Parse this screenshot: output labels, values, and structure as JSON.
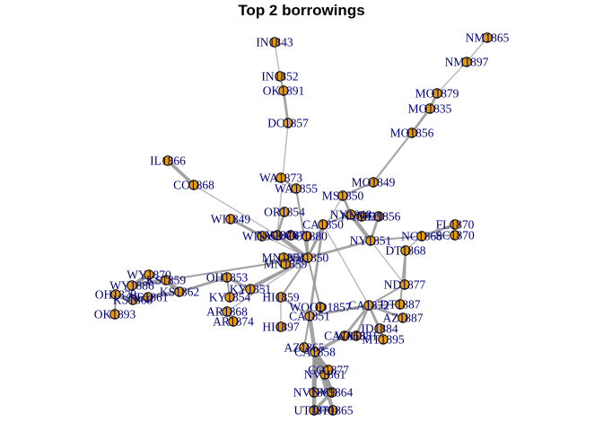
{
  "title": "Top 2 borrowings",
  "colors": {
    "node_fill": "#E69F00",
    "node_stroke": "#000000",
    "edge": "#999999",
    "label": "#000080"
  },
  "nodes": [
    {
      "id": "IN1843",
      "label": "IN1843"
    },
    {
      "id": "IN1852",
      "label": "IN1852"
    },
    {
      "id": "OK1891",
      "label": "OK1891"
    },
    {
      "id": "DC1857",
      "label": "DC1857"
    },
    {
      "id": "IL1866",
      "label": "IL1866"
    },
    {
      "id": "CO1868",
      "label": "CO1868"
    },
    {
      "id": "NM1865",
      "label": "NM1865"
    },
    {
      "id": "NM1897",
      "label": "NM1897"
    },
    {
      "id": "MO1879",
      "label": "MO1879"
    },
    {
      "id": "MO1835",
      "label": "MO1835"
    },
    {
      "id": "MO1856",
      "label": "MO1856"
    },
    {
      "id": "MO1849",
      "label": "MO1849"
    },
    {
      "id": "WA1873",
      "label": "WA1873"
    },
    {
      "id": "WA1855",
      "label": "WA1855"
    },
    {
      "id": "MS1850",
      "label": "MS1850"
    },
    {
      "id": "OR1854",
      "label": "OR1854"
    },
    {
      "id": "NY1848",
      "label": "NY1848"
    },
    {
      "id": "NY1829",
      "label": "NY1829"
    },
    {
      "id": "MD1856",
      "label": "MD1856"
    },
    {
      "id": "CA1850",
      "label": "CA1850"
    },
    {
      "id": "FL1870",
      "label": "FL1870"
    },
    {
      "id": "SC1870",
      "label": "SC1870"
    },
    {
      "id": "NC1868",
      "label": "NC1868"
    },
    {
      "id": "NY1851",
      "label": "NY1851"
    },
    {
      "id": "DT1868",
      "label": "DT1868"
    },
    {
      "id": "WI1849",
      "label": "WI1849"
    },
    {
      "id": "WI1858",
      "label": "WI1858"
    },
    {
      "id": "NY1876",
      "label": "NY1876"
    },
    {
      "id": "CO1870",
      "label": "CO1870"
    },
    {
      "id": "CO1880",
      "label": "CO1880"
    },
    {
      "id": "MN1851",
      "label": "MN1851"
    },
    {
      "id": "NY1850",
      "label": "NY1850"
    },
    {
      "id": "MN1859",
      "label": "MN1859"
    },
    {
      "id": "WY1870",
      "label": "WY1870"
    },
    {
      "id": "WY1886",
      "label": "WY1886"
    },
    {
      "id": "KS1859",
      "label": "KS1859"
    },
    {
      "id": "OH1853",
      "label": "OH1853"
    },
    {
      "id": "OH1879",
      "label": "OH1879"
    },
    {
      "id": "KS1868",
      "label": "KS1868"
    },
    {
      "id": "NE1861",
      "label": "NE1861"
    },
    {
      "id": "KS1862",
      "label": "KS1862"
    },
    {
      "id": "KY1851",
      "label": "KY1851"
    },
    {
      "id": "KY1854",
      "label": "KY1854"
    },
    {
      "id": "OK1893",
      "label": "OK1893"
    },
    {
      "id": "HI1859",
      "label": "HI1859"
    },
    {
      "id": "ND1877",
      "label": "ND1877"
    },
    {
      "id": "DT1887",
      "label": "DT1887"
    },
    {
      "id": "WOOD1857",
      "label": "WOOD1857"
    },
    {
      "id": "CA1851",
      "label": "CA1851"
    },
    {
      "id": "CA1872",
      "label": "CA1872"
    },
    {
      "id": "AZ1887",
      "label": "AZ1887"
    },
    {
      "id": "AR1868",
      "label": "AR1868"
    },
    {
      "id": "AR1874",
      "label": "AR1874"
    },
    {
      "id": "HI1897",
      "label": "HI1897"
    },
    {
      "id": "ID1884",
      "label": "ID1884"
    },
    {
      "id": "MT1895",
      "label": "MT1895"
    },
    {
      "id": "CA1868",
      "label": "CA1868"
    },
    {
      "id": "WA1881",
      "label": "WA1881"
    },
    {
      "id": "AZ1865",
      "label": "AZ1865"
    },
    {
      "id": "CA1858",
      "label": "CA1858"
    },
    {
      "id": "NV1861",
      "label": "NV1861"
    },
    {
      "id": "CO1877",
      "label": "CO1877"
    },
    {
      "id": "NV1869",
      "label": "NV1869"
    },
    {
      "id": "NV1864",
      "label": "NV1864"
    },
    {
      "id": "UT1870",
      "label": "UT1870"
    },
    {
      "id": "UT1865",
      "label": "UT1865"
    }
  ],
  "edges": [
    {
      "from": "IN1843",
      "to": "IN1852",
      "weight": 1
    },
    {
      "from": "IN1852",
      "to": "OK1891",
      "weight": 2
    },
    {
      "from": "OK1891",
      "to": "DC1857",
      "weight": 3
    },
    {
      "from": "DC1857",
      "to": "NY1876",
      "weight": 1
    },
    {
      "from": "IL1866",
      "to": "CO1868",
      "weight": 4
    },
    {
      "from": "CO1868",
      "to": "NY1876",
      "weight": 1
    },
    {
      "from": "NM1865",
      "to": "NM1897",
      "weight": 1
    },
    {
      "from": "NM1897",
      "to": "MO1879",
      "weight": 1
    },
    {
      "from": "MO1879",
      "to": "MO1835",
      "weight": 3
    },
    {
      "from": "MO1835",
      "to": "MO1856",
      "weight": 3
    },
    {
      "from": "MO1856",
      "to": "MO1849",
      "weight": 2
    },
    {
      "from": "MO1849",
      "to": "MS1850",
      "weight": 2
    },
    {
      "from": "WA1873",
      "to": "WA1855",
      "weight": 3
    },
    {
      "from": "WA1855",
      "to": "NY1850",
      "weight": 2
    },
    {
      "from": "MS1850",
      "to": "NY1848",
      "weight": 3
    },
    {
      "from": "MS1850",
      "to": "NY1850",
      "weight": 1
    },
    {
      "from": "OR1854",
      "to": "NY1876",
      "weight": 3
    },
    {
      "from": "NY1848",
      "to": "NY1829",
      "weight": 3
    },
    {
      "from": "NY1829",
      "to": "MD1856",
      "weight": 3
    },
    {
      "from": "NY1848",
      "to": "CA1850",
      "weight": 2
    },
    {
      "from": "CA1850",
      "to": "NY1850",
      "weight": 3
    },
    {
      "from": "NY1848",
      "to": "NY1851",
      "weight": 5
    },
    {
      "from": "MD1856",
      "to": "NY1851",
      "weight": 3
    },
    {
      "from": "NY1851",
      "to": "NC1868",
      "weight": 2
    },
    {
      "from": "NC1868",
      "to": "FL1870",
      "weight": 3
    },
    {
      "from": "NC1868",
      "to": "SC1870",
      "weight": 2
    },
    {
      "from": "NC1868",
      "to": "DT1868",
      "weight": 1
    },
    {
      "from": "DT1868",
      "to": "ND1877",
      "weight": 2
    },
    {
      "from": "DT1868",
      "to": "DT1887",
      "weight": 2
    },
    {
      "from": "NY1851",
      "to": "NY1850",
      "weight": 3
    },
    {
      "from": "WI1849",
      "to": "WI1858",
      "weight": 3
    },
    {
      "from": "WI1858",
      "to": "NY1876",
      "weight": 3
    },
    {
      "from": "NY1876",
      "to": "CO1870",
      "weight": 4
    },
    {
      "from": "CO1870",
      "to": "CO1880",
      "weight": 3
    },
    {
      "from": "NY1876",
      "to": "NY1850",
      "weight": 5
    },
    {
      "from": "CO1880",
      "to": "NY1850",
      "weight": 3
    },
    {
      "from": "MN1851",
      "to": "NY1850",
      "weight": 5
    },
    {
      "from": "MN1859",
      "to": "MN1851",
      "weight": 4
    },
    {
      "from": "WI1849",
      "to": "NY1850",
      "weight": 1
    },
    {
      "from": "OH1853",
      "to": "KY1851",
      "weight": 3
    },
    {
      "from": "OH1853",
      "to": "KY1854",
      "weight": 2
    },
    {
      "from": "KY1851",
      "to": "NY1850",
      "weight": 3
    },
    {
      "from": "KY1854",
      "to": "NY1850",
      "weight": 2
    },
    {
      "from": "WY1870",
      "to": "WY1886",
      "weight": 5
    },
    {
      "from": "WY1886",
      "to": "KS1859",
      "weight": 6
    },
    {
      "from": "KS1859",
      "to": "KS1862",
      "weight": 6
    },
    {
      "from": "KS1862",
      "to": "NE1861",
      "weight": 5
    },
    {
      "from": "NE1861",
      "to": "KS1868",
      "weight": 5
    },
    {
      "from": "OH1879",
      "to": "KS1868",
      "weight": 3
    },
    {
      "from": "OH1879",
      "to": "OK1893",
      "weight": 2
    },
    {
      "from": "KS1862",
      "to": "OH1853",
      "weight": 3
    },
    {
      "from": "KS1859",
      "to": "NY1850",
      "weight": 2
    },
    {
      "from": "HI1859",
      "to": "NY1850",
      "weight": 2
    },
    {
      "from": "HI1859",
      "to": "CA1851",
      "weight": 2
    },
    {
      "from": "HI1897",
      "to": "HI1859",
      "weight": 1
    },
    {
      "from": "AR1868",
      "to": "AR1874",
      "weight": 3
    },
    {
      "from": "AR1868",
      "to": "NY1850",
      "weight": 1
    },
    {
      "from": "WOOD1857",
      "to": "NY1850",
      "weight": 2
    },
    {
      "from": "CA1851",
      "to": "CA1850",
      "weight": 3
    },
    {
      "from": "CA1851",
      "to": "CA1858",
      "weight": 5
    },
    {
      "from": "CA1872",
      "to": "CA1851",
      "weight": 3
    },
    {
      "from": "CA1872",
      "to": "DT1887",
      "weight": 2
    },
    {
      "from": "CA1872",
      "to": "ND1877",
      "weight": 2
    },
    {
      "from": "CA1872",
      "to": "AZ1887",
      "weight": 3
    },
    {
      "from": "CA1872",
      "to": "ID1884",
      "weight": 3
    },
    {
      "from": "ID1884",
      "to": "MT1895",
      "weight": 3
    },
    {
      "from": "CA1872",
      "to": "WA1881",
      "weight": 3
    },
    {
      "from": "CA1868",
      "to": "CA1872",
      "weight": 3
    },
    {
      "from": "CA1868",
      "to": "WA1881",
      "weight": 2
    },
    {
      "from": "CA1868",
      "to": "CA1858",
      "weight": 4
    },
    {
      "from": "AZ1865",
      "to": "CA1858",
      "weight": 4
    },
    {
      "from": "AZ1865",
      "to": "CA1851",
      "weight": 2
    },
    {
      "from": "CA1858",
      "to": "NV1861",
      "weight": 6
    },
    {
      "from": "CA1858",
      "to": "NV1869",
      "weight": 6
    },
    {
      "from": "CA1858",
      "to": "NV1864",
      "weight": 6
    },
    {
      "from": "CA1858",
      "to": "CO1877",
      "weight": 4
    },
    {
      "from": "CA1858",
      "to": "UT1870",
      "weight": 5
    },
    {
      "from": "CA1858",
      "to": "UT1865",
      "weight": 5
    },
    {
      "from": "NV1861",
      "to": "NV1864",
      "weight": 4
    },
    {
      "from": "NV1869",
      "to": "NV1864",
      "weight": 4
    },
    {
      "from": "NV1864",
      "to": "UT1870",
      "weight": 4
    },
    {
      "from": "UT1870",
      "to": "UT1865",
      "weight": 4
    },
    {
      "from": "CO1877",
      "to": "CA1858",
      "weight": 3
    },
    {
      "from": "ND1877",
      "to": "NY1851",
      "weight": 1
    },
    {
      "from": "CA1850",
      "to": "CA1872",
      "weight": 1
    }
  ]
}
